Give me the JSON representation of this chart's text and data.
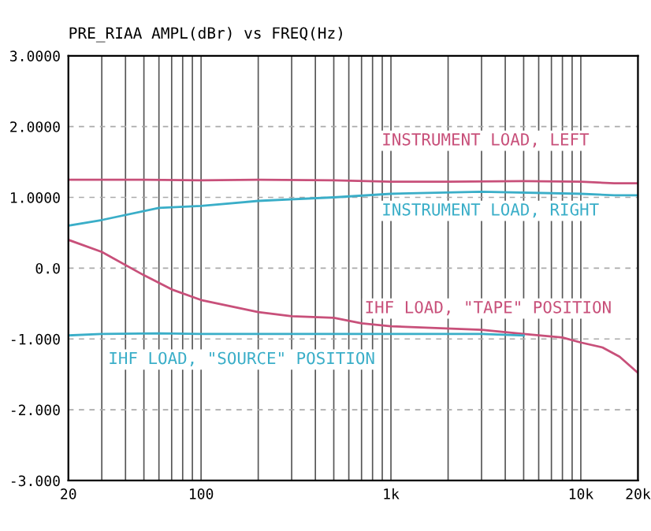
{
  "chart_data": {
    "type": "line",
    "title": "PRE_RIAA AMPL(dBr) vs FREQ(Hz)",
    "log": "x",
    "grid": true,
    "legend": false,
    "marker": "none",
    "line_style": "solid",
    "xlim": [
      20,
      20000
    ],
    "xticks": [
      20,
      100,
      {
        "value": 1000,
        "label": "1k"
      },
      {
        "value": 10000,
        "label": "10k"
      },
      {
        "value": 20000,
        "label": "20k"
      }
    ],
    "ylim": [
      -3,
      3
    ],
    "yticks": [
      {
        "value": 3,
        "label": "3.0000"
      },
      {
        "value": 2,
        "label": "2.0000"
      },
      {
        "value": 1,
        "label": "1.0000"
      },
      {
        "value": 0,
        "label": "0.0"
      },
      {
        "value": -1,
        "label": "-1.000"
      },
      {
        "value": -2,
        "label": "-2.000"
      },
      {
        "value": -3,
        "label": "-3.000"
      }
    ],
    "series": [
      {
        "name": "INSTRUMENT LOAD, LEFT",
        "color": "#c8507a",
        "x": [
          20,
          50,
          100,
          200,
          500,
          1000,
          2000,
          5000,
          10000,
          15000,
          20000
        ],
        "values": [
          1.25,
          1.25,
          1.24,
          1.25,
          1.24,
          1.22,
          1.22,
          1.23,
          1.22,
          1.2,
          1.2
        ]
      },
      {
        "name": "INSTRUMENT LOAD, RIGHT",
        "color": "#3aaec8",
        "x": [
          20,
          30,
          60,
          100,
          200,
          500,
          1000,
          3000,
          10000,
          15000,
          20000
        ],
        "values": [
          0.6,
          0.68,
          0.85,
          0.88,
          0.95,
          1.0,
          1.05,
          1.08,
          1.05,
          1.03,
          1.03
        ]
      },
      {
        "name": "IHF LOAD, \"TAPE\" POSITION",
        "color": "#c8507a",
        "x": [
          20,
          30,
          50,
          70,
          100,
          200,
          300,
          500,
          700,
          1000,
          3000,
          5000,
          8000,
          10000,
          13000,
          16000,
          20000
        ],
        "values": [
          0.4,
          0.23,
          -0.1,
          -0.3,
          -0.45,
          -0.62,
          -0.68,
          -0.7,
          -0.78,
          -0.82,
          -0.87,
          -0.93,
          -0.98,
          -1.05,
          -1.12,
          -1.25,
          -1.48
        ]
      },
      {
        "name": "IHF LOAD, \"SOURCE\" POSITION",
        "color": "#3aaec8",
        "x": [
          20,
          30,
          60,
          100,
          200,
          500,
          1000,
          3000,
          5000
        ],
        "values": [
          -0.95,
          -0.93,
          -0.92,
          -0.93,
          -0.93,
          -0.93,
          -0.93,
          -0.93,
          -0.95
        ]
      }
    ]
  }
}
